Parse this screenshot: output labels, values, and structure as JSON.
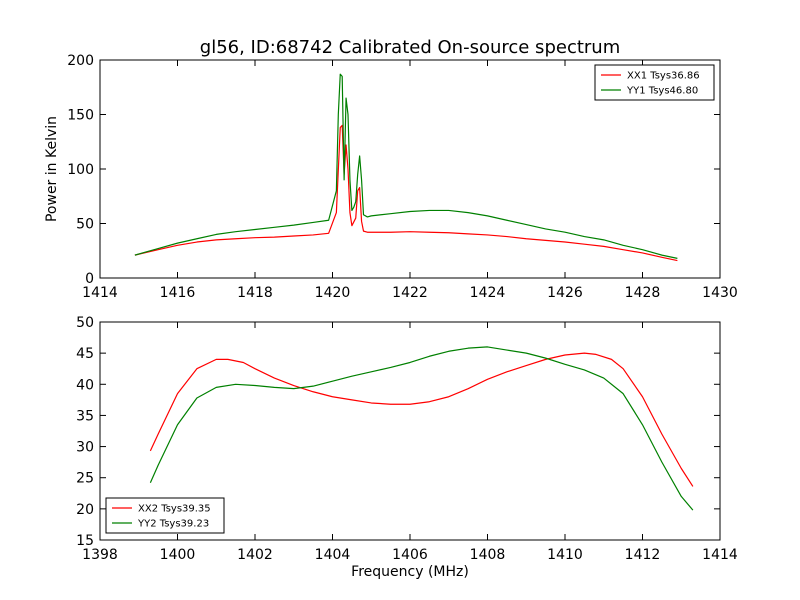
{
  "chart_data": [
    {
      "type": "line",
      "title": "gl56, ID:68742 Calibrated On-source spectrum",
      "xlabel": "",
      "ylabel": "Power in Kelvin",
      "xlim": [
        1414,
        1430
      ],
      "ylim": [
        0,
        200
      ],
      "xticks": [
        "1414",
        "1416",
        "1418",
        "1420",
        "1422",
        "1424",
        "1426",
        "1428",
        "1430"
      ],
      "yticks": [
        "0",
        "50",
        "100",
        "150",
        "200"
      ],
      "legend_position": "top-right",
      "grid": false,
      "series": [
        {
          "name": "XX1 Tsys36.86",
          "color": "#ff0000",
          "x": [
            1414.9,
            1415.5,
            1416.0,
            1416.5,
            1417.0,
            1417.5,
            1418.0,
            1418.5,
            1419.0,
            1419.5,
            1419.9,
            1420.1,
            1420.2,
            1420.25,
            1420.3,
            1420.35,
            1420.4,
            1420.45,
            1420.5,
            1420.6,
            1420.65,
            1420.7,
            1420.75,
            1420.8,
            1420.9,
            1421.0,
            1421.5,
            1422.0,
            1422.5,
            1423.0,
            1423.5,
            1424.0,
            1424.5,
            1425.0,
            1425.5,
            1426.0,
            1426.5,
            1427.0,
            1427.5,
            1428.0,
            1428.5,
            1428.9
          ],
          "y": [
            21,
            26,
            30,
            33,
            35,
            36,
            37,
            37.5,
            38.5,
            39.5,
            41,
            60,
            138,
            140,
            95,
            122,
            100,
            60,
            48,
            55,
            80,
            83,
            52,
            43,
            42,
            42,
            42,
            42.5,
            42,
            41.5,
            40.5,
            39.5,
            38,
            36,
            34.5,
            33,
            31,
            29,
            26,
            23,
            19,
            16
          ]
        },
        {
          "name": "YY1 Tsys46.80",
          "color": "#008000",
          "x": [
            1414.9,
            1415.5,
            1416.0,
            1416.5,
            1417.0,
            1417.5,
            1418.0,
            1418.5,
            1419.0,
            1419.5,
            1419.9,
            1420.1,
            1420.15,
            1420.2,
            1420.25,
            1420.3,
            1420.35,
            1420.4,
            1420.45,
            1420.5,
            1420.55,
            1420.6,
            1420.65,
            1420.7,
            1420.75,
            1420.8,
            1420.9,
            1421.0,
            1421.5,
            1422.0,
            1422.5,
            1423.0,
            1423.5,
            1424.0,
            1424.5,
            1425.0,
            1425.5,
            1426.0,
            1426.5,
            1427.0,
            1427.5,
            1428.0,
            1428.5,
            1428.9
          ],
          "y": [
            21,
            27,
            32,
            36,
            40,
            42.5,
            44.5,
            46.5,
            48.5,
            51,
            53,
            80,
            150,
            187,
            185,
            90,
            165,
            150,
            90,
            62,
            65,
            70,
            95,
            112,
            90,
            58,
            56,
            57,
            59,
            61,
            62,
            62,
            60,
            57,
            53,
            49,
            45,
            42,
            38,
            35,
            30,
            26,
            21,
            18
          ]
        }
      ]
    },
    {
      "type": "line",
      "title": "",
      "xlabel": "Frequency (MHz)",
      "ylabel": "",
      "xlim": [
        1398,
        1414
      ],
      "ylim": [
        15,
        50
      ],
      "xticks": [
        "1398",
        "1400",
        "1402",
        "1404",
        "1406",
        "1408",
        "1410",
        "1412",
        "1414"
      ],
      "yticks": [
        "15",
        "20",
        "25",
        "30",
        "35",
        "40",
        "45",
        "50"
      ],
      "legend_position": "bottom-left",
      "grid": false,
      "series": [
        {
          "name": "XX2 Tsys39.35",
          "color": "#ff0000",
          "x": [
            1399.3,
            1399.5,
            1400.0,
            1400.5,
            1401.0,
            1401.3,
            1401.7,
            1402.0,
            1402.5,
            1403.0,
            1403.5,
            1404.0,
            1404.5,
            1405.0,
            1405.5,
            1406.0,
            1406.5,
            1407.0,
            1407.5,
            1408.0,
            1408.5,
            1409.0,
            1409.5,
            1410.0,
            1410.5,
            1410.8,
            1411.2,
            1411.5,
            1412.0,
            1412.5,
            1413.0,
            1413.3
          ],
          "y": [
            29.3,
            32,
            38.5,
            42.5,
            44,
            44,
            43.5,
            42.5,
            41,
            39.8,
            38.8,
            38,
            37.5,
            37,
            36.8,
            36.8,
            37.2,
            38,
            39.3,
            40.8,
            42,
            43,
            44,
            44.7,
            45,
            44.8,
            44,
            42.5,
            38,
            32,
            26.5,
            23.6
          ]
        },
        {
          "name": "YY2 Tsys39.23",
          "color": "#008000",
          "x": [
            1399.3,
            1399.5,
            1400.0,
            1400.5,
            1401.0,
            1401.5,
            1402.0,
            1402.5,
            1403.0,
            1403.5,
            1404.0,
            1404.5,
            1405.0,
            1405.5,
            1406.0,
            1406.5,
            1407.0,
            1407.5,
            1408.0,
            1408.5,
            1409.0,
            1409.5,
            1410.0,
            1410.5,
            1411.0,
            1411.5,
            1412.0,
            1412.5,
            1413.0,
            1413.3
          ],
          "y": [
            24.2,
            27,
            33.5,
            37.8,
            39.5,
            40,
            39.8,
            39.5,
            39.3,
            39.7,
            40.5,
            41.3,
            42,
            42.7,
            43.5,
            44.5,
            45.3,
            45.8,
            46,
            45.5,
            45,
            44.2,
            43.2,
            42.3,
            41,
            38.5,
            33.5,
            27.5,
            22,
            19.8
          ]
        }
      ]
    }
  ]
}
